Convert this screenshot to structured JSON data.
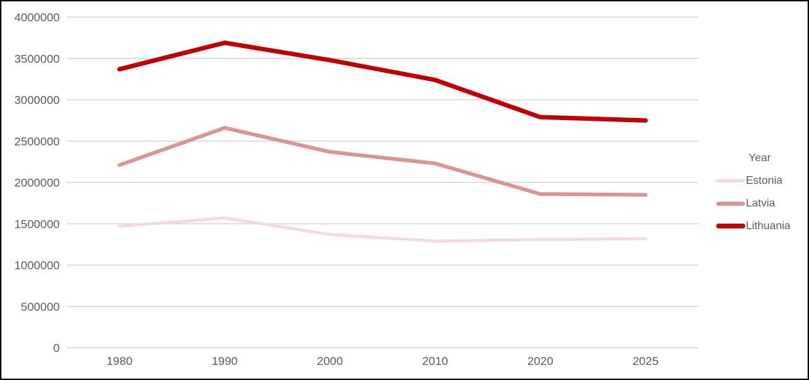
{
  "chart_data": {
    "type": "line",
    "title": "",
    "grid": true,
    "legend": {
      "title": "Year",
      "position": "right"
    },
    "x_axis": {
      "categories": [
        "1980",
        "1990",
        "2000",
        "2010",
        "2020",
        "2025"
      ]
    },
    "y_axis": {
      "min": 0,
      "max": 4000000,
      "tick_labels": [
        "0",
        "500000",
        "1000000",
        "1500000",
        "2000000",
        "2500000",
        "3000000",
        "3500000",
        "4000000"
      ]
    },
    "series": [
      {
        "name": "Estonia",
        "color": "#F2DCDB",
        "stroke_width": 4.5,
        "values": [
          1470000,
          1570000,
          1370000,
          1290000,
          1310000,
          1320000
        ]
      },
      {
        "name": "Latvia",
        "color": "#D99594",
        "stroke_width": 5.5,
        "values": [
          2210000,
          2660000,
          2370000,
          2230000,
          1860000,
          1850000
        ]
      },
      {
        "name": "Lithuania",
        "color": "#C00000",
        "stroke_width": 6.5,
        "values": [
          3370000,
          3690000,
          3480000,
          3240000,
          2790000,
          2750000
        ]
      }
    ]
  },
  "colors": {
    "background": "#FFFFFF",
    "border": "#000000",
    "gridline": "#D9D9D9",
    "axis_text": "#595959",
    "legend_text": "#595959"
  }
}
